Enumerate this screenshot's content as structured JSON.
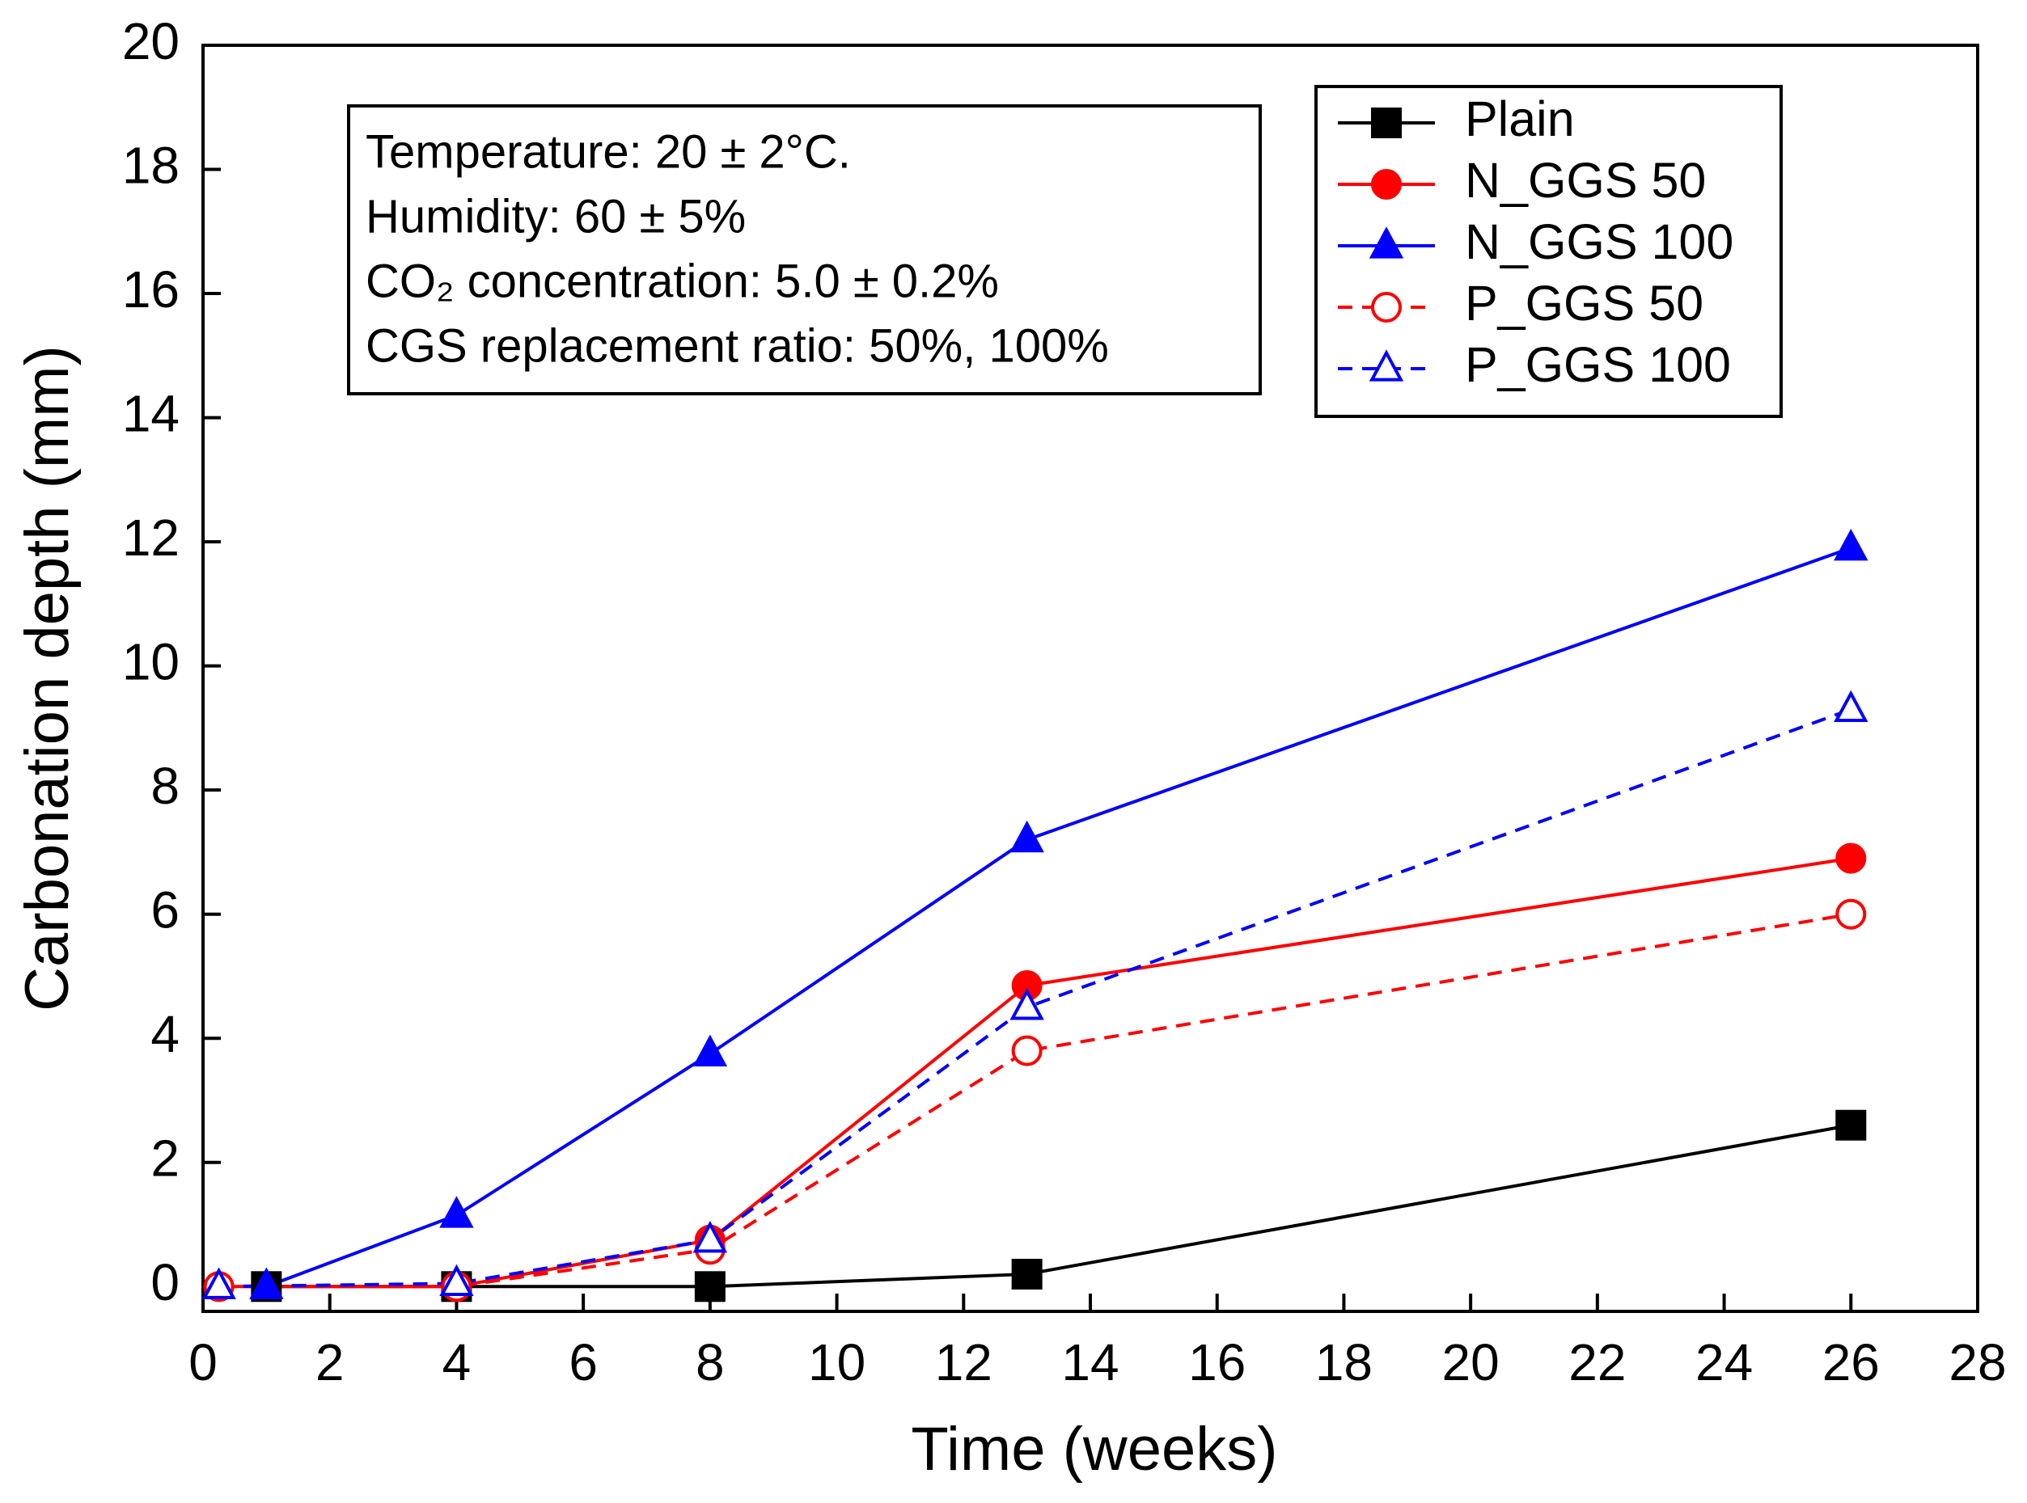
{
  "chart_data": {
    "type": "line",
    "xlabel": "Time (weeks)",
    "ylabel": "Carbonation depth (mm)",
    "xlim": [
      0,
      28
    ],
    "xticks": [
      0,
      2,
      4,
      6,
      8,
      10,
      12,
      14,
      16,
      18,
      20,
      22,
      24,
      26,
      28
    ],
    "ylim": [
      -0.4,
      20
    ],
    "yticks": [
      0,
      2,
      4,
      6,
      8,
      10,
      12,
      14,
      16,
      18,
      20
    ],
    "annotations": [
      "Temperature: 20 ± 2°C.",
      "Humidity: 60 ± 5%",
      "CO₂ concentration: 5.0 ± 0.2%",
      "CGS replacement ratio: 50%, 100%"
    ],
    "legend": "upper right",
    "series": [
      {
        "name": "Plain",
        "color": "#000000",
        "marker": "square",
        "filled": true,
        "dashed": false,
        "x": [
          1,
          4,
          8,
          13,
          26
        ],
        "values": [
          0,
          0,
          0,
          0.2,
          2.6
        ]
      },
      {
        "name": "N_GGS 50",
        "color": "#ff0000",
        "marker": "circle",
        "filled": true,
        "dashed": false,
        "x": [
          0.25,
          4,
          8,
          13,
          26
        ],
        "values": [
          0,
          0,
          0.75,
          4.85,
          6.9
        ]
      },
      {
        "name": "N_GGS 100",
        "color": "#0000ff",
        "marker": "triangle",
        "filled": true,
        "dashed": false,
        "x": [
          1,
          4,
          8,
          13,
          26
        ],
        "values": [
          0,
          1.15,
          3.75,
          7.2,
          11.9
        ]
      },
      {
        "name": "P_GGS 50",
        "color": "#ff0000",
        "marker": "circle",
        "filled": false,
        "dashed": true,
        "x": [
          0.25,
          4,
          8,
          13,
          26
        ],
        "values": [
          0,
          0,
          0.6,
          3.8,
          6.0
        ]
      },
      {
        "name": "P_GGS 100",
        "color": "#0000ff",
        "marker": "triangle",
        "filled": false,
        "dashed": true,
        "x": [
          0.25,
          4,
          8,
          13,
          26
        ],
        "values": [
          0,
          0.05,
          0.75,
          4.5,
          9.3
        ]
      }
    ]
  }
}
